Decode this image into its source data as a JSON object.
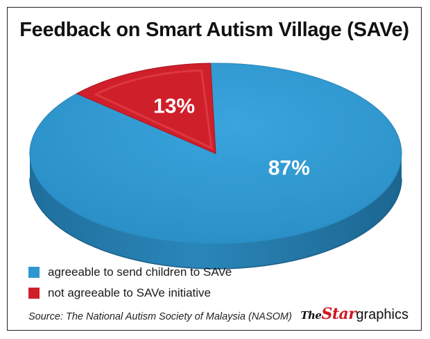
{
  "chart_data": {
    "type": "pie",
    "title": "Feedback on Smart Autism Village (SAVe)",
    "slices": [
      {
        "label": "agreeable to send children to SAVe",
        "value": 87,
        "value_label": "87%",
        "color": "#2e97d1"
      },
      {
        "label": "not agreeable to SAVe initiative",
        "value": 13,
        "value_label": "13%",
        "color": "#cf1f2a"
      }
    ],
    "legend_position": "bottom-left",
    "source": "Source: The National Autism Society of Malaysia (NASOM)"
  },
  "branding": {
    "logo_the": "The",
    "logo_star": "Star",
    "logo_graphics": "graphics"
  }
}
